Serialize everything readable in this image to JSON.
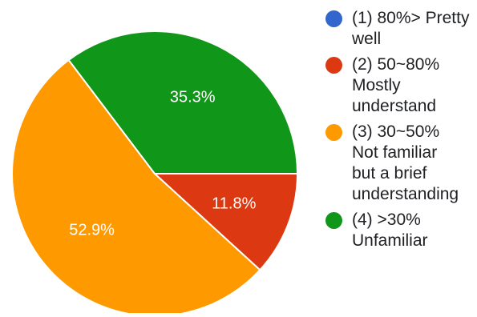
{
  "chart_data": {
    "type": "pie",
    "slices": [
      {
        "label": "(1) 80%> Pretty\nwell",
        "value": 0,
        "value_label": "",
        "color": "#3366cc"
      },
      {
        "label": "(2) 50~80%\nMostly\nunderstand",
        "value": 11.8,
        "value_label": "11.8%",
        "color": "#dc3912"
      },
      {
        "label": "(3) 30~50%\nNot familiar\nbut a brief\nunderstanding",
        "value": 52.9,
        "value_label": "52.9%",
        "color": "#ff9900"
      },
      {
        "label": "(4) >30%\nUnfamiliar",
        "value": 35.3,
        "value_label": "35.3%",
        "color": "#109618"
      }
    ],
    "legend_position": "right",
    "start_angle": "3 o'clock",
    "direction": "clockwise"
  }
}
